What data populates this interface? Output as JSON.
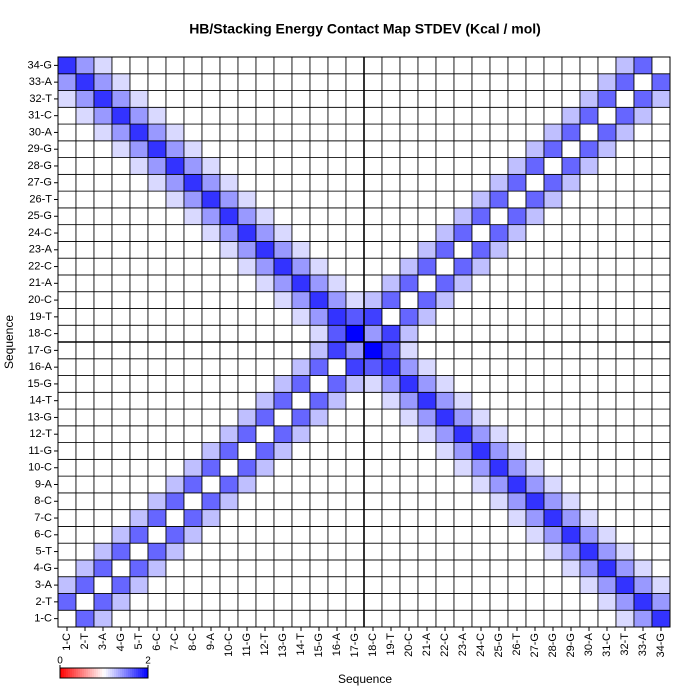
{
  "chart_data": {
    "type": "heatmap",
    "title": "HB/Stacking Energy Contact Map STDEV (Kcal / mol)",
    "x_label": "Sequence",
    "y_label": "Sequence",
    "categories": [
      "1-C",
      "2-T",
      "3-A",
      "4-G",
      "5-T",
      "6-C",
      "7-C",
      "8-C",
      "9-A",
      "10-C",
      "11-G",
      "12-T",
      "13-G",
      "14-T",
      "15-G",
      "16-A",
      "17-G",
      "18-C",
      "19-T",
      "20-C",
      "21-A",
      "22-C",
      "23-A",
      "24-C",
      "25-G",
      "26-T",
      "27-G",
      "28-G",
      "29-G",
      "30-A",
      "31-C",
      "32-T",
      "33-A",
      "34-G"
    ],
    "zlim": [
      0,
      2
    ],
    "zticks": [
      0,
      2
    ],
    "colormap": [
      "#ff0000",
      "#ffffff",
      "#0000ff"
    ],
    "values": [
      [
        1,
        1.6,
        1.25,
        1,
        1,
        1,
        1,
        1,
        1,
        1,
        1,
        1,
        1,
        1,
        1,
        1,
        1,
        1,
        1,
        1,
        1,
        1,
        1,
        1,
        1,
        1,
        1,
        1,
        1,
        1,
        1,
        1.15,
        1.4,
        1.8
      ],
      [
        1.6,
        1,
        1.6,
        1.25,
        1,
        1,
        1,
        1,
        1,
        1,
        1,
        1,
        1,
        1,
        1,
        1,
        1,
        1,
        1,
        1,
        1,
        1,
        1,
        1,
        1,
        1,
        1,
        1,
        1,
        1,
        1.15,
        1.4,
        1.8,
        1.4
      ],
      [
        1.25,
        1.6,
        1,
        1.6,
        1.25,
        1,
        1,
        1,
        1,
        1,
        1,
        1,
        1,
        1,
        1,
        1,
        1,
        1,
        1,
        1,
        1,
        1,
        1,
        1,
        1,
        1,
        1,
        1,
        1,
        1.15,
        1.4,
        1.8,
        1.4,
        1.15
      ],
      [
        1,
        1.25,
        1.6,
        1,
        1.6,
        1.25,
        1,
        1,
        1,
        1,
        1,
        1,
        1,
        1,
        1,
        1,
        1,
        1,
        1,
        1,
        1,
        1,
        1,
        1,
        1,
        1,
        1,
        1,
        1.15,
        1.4,
        1.8,
        1.4,
        1.15,
        1
      ],
      [
        1,
        1,
        1.25,
        1.6,
        1,
        1.6,
        1.25,
        1,
        1,
        1,
        1,
        1,
        1,
        1,
        1,
        1,
        1,
        1,
        1,
        1,
        1,
        1,
        1,
        1,
        1,
        1,
        1,
        1.15,
        1.4,
        1.8,
        1.4,
        1.15,
        1,
        1
      ],
      [
        1,
        1,
        1,
        1.25,
        1.6,
        1,
        1.6,
        1.25,
        1,
        1,
        1,
        1,
        1,
        1,
        1,
        1,
        1,
        1,
        1,
        1,
        1,
        1,
        1,
        1,
        1,
        1,
        1.15,
        1.4,
        1.8,
        1.4,
        1.15,
        1,
        1,
        1
      ],
      [
        1,
        1,
        1,
        1,
        1.25,
        1.6,
        1,
        1.6,
        1.25,
        1,
        1,
        1,
        1,
        1,
        1,
        1,
        1,
        1,
        1,
        1,
        1,
        1,
        1,
        1,
        1,
        1.15,
        1.4,
        1.8,
        1.4,
        1.15,
        1,
        1,
        1,
        1
      ],
      [
        1,
        1,
        1,
        1,
        1,
        1.25,
        1.6,
        1,
        1.6,
        1.25,
        1,
        1,
        1,
        1,
        1,
        1,
        1,
        1,
        1,
        1,
        1,
        1,
        1,
        1,
        1.15,
        1.4,
        1.8,
        1.4,
        1.15,
        1,
        1,
        1,
        1,
        1
      ],
      [
        1,
        1,
        1,
        1,
        1,
        1,
        1.25,
        1.6,
        1,
        1.6,
        1.25,
        1,
        1,
        1,
        1,
        1,
        1,
        1,
        1,
        1,
        1,
        1,
        1,
        1.15,
        1.4,
        1.8,
        1.4,
        1.15,
        1,
        1,
        1,
        1,
        1,
        1
      ],
      [
        1,
        1,
        1,
        1,
        1,
        1,
        1,
        1.25,
        1.6,
        1,
        1.6,
        1.25,
        1,
        1,
        1,
        1,
        1,
        1,
        1,
        1,
        1,
        1,
        1.15,
        1.4,
        1.8,
        1.4,
        1.15,
        1,
        1,
        1,
        1,
        1,
        1,
        1
      ],
      [
        1,
        1,
        1,
        1,
        1,
        1,
        1,
        1,
        1.25,
        1.6,
        1,
        1.6,
        1.25,
        1,
        1,
        1,
        1,
        1,
        1,
        1,
        1,
        1.15,
        1.4,
        1.8,
        1.4,
        1.15,
        1,
        1,
        1,
        1,
        1,
        1,
        1,
        1
      ],
      [
        1,
        1,
        1,
        1,
        1,
        1,
        1,
        1,
        1,
        1.25,
        1.6,
        1,
        1.6,
        1.25,
        1,
        1,
        1,
        1,
        1,
        1,
        1.15,
        1.4,
        1.8,
        1.4,
        1.15,
        1,
        1,
        1,
        1,
        1,
        1,
        1,
        1,
        1
      ],
      [
        1,
        1,
        1,
        1,
        1,
        1,
        1,
        1,
        1,
        1,
        1.25,
        1.6,
        1,
        1.6,
        1.25,
        1,
        1,
        1,
        1,
        1.15,
        1.4,
        1.8,
        1.4,
        1.15,
        1,
        1,
        1,
        1,
        1,
        1,
        1,
        1,
        1,
        1
      ],
      [
        1,
        1,
        1,
        1,
        1,
        1,
        1,
        1,
        1,
        1,
        1,
        1.25,
        1.6,
        1,
        1.6,
        1.25,
        1,
        1,
        1.15,
        1.4,
        1.8,
        1.4,
        1.15,
        1,
        1,
        1,
        1,
        1,
        1,
        1,
        1,
        1,
        1,
        1
      ],
      [
        1,
        1,
        1,
        1,
        1,
        1,
        1,
        1,
        1,
        1,
        1,
        1,
        1.25,
        1.6,
        1,
        1.6,
        1.25,
        1.15,
        1.4,
        1.8,
        1.4,
        1.15,
        1,
        1,
        1,
        1,
        1,
        1,
        1,
        1,
        1,
        1,
        1,
        1
      ],
      [
        1,
        1,
        1,
        1,
        1,
        1,
        1,
        1,
        1,
        1,
        1,
        1,
        1,
        1.25,
        1.6,
        1,
        1.75,
        1.65,
        1.8,
        1.4,
        1.15,
        1,
        1,
        1,
        1,
        1,
        1,
        1,
        1,
        1,
        1,
        1,
        1,
        1
      ],
      [
        1,
        1,
        1,
        1,
        1,
        1,
        1,
        1,
        1,
        1,
        1,
        1,
        1,
        1,
        1.25,
        1.75,
        1.4,
        2,
        1.65,
        1.15,
        1,
        1,
        1,
        1,
        1,
        1,
        1,
        1,
        1,
        1,
        1,
        1,
        1,
        1
      ],
      [
        1,
        1,
        1,
        1,
        1,
        1,
        1,
        1,
        1,
        1,
        1,
        1,
        1,
        1,
        1.15,
        1.65,
        2,
        1.4,
        1.75,
        1.25,
        1,
        1,
        1,
        1,
        1,
        1,
        1,
        1,
        1,
        1,
        1,
        1,
        1,
        1
      ],
      [
        1,
        1,
        1,
        1,
        1,
        1,
        1,
        1,
        1,
        1,
        1,
        1,
        1,
        1.15,
        1.4,
        1.8,
        1.65,
        1.75,
        1,
        1.6,
        1.25,
        1,
        1,
        1,
        1,
        1,
        1,
        1,
        1,
        1,
        1,
        1,
        1,
        1
      ],
      [
        1,
        1,
        1,
        1,
        1,
        1,
        1,
        1,
        1,
        1,
        1,
        1,
        1.15,
        1.4,
        1.8,
        1.4,
        1.15,
        1.25,
        1.6,
        1,
        1.6,
        1.25,
        1,
        1,
        1,
        1,
        1,
        1,
        1,
        1,
        1,
        1,
        1,
        1
      ],
      [
        1,
        1,
        1,
        1,
        1,
        1,
        1,
        1,
        1,
        1,
        1,
        1.15,
        1.4,
        1.8,
        1.4,
        1.15,
        1,
        1,
        1.25,
        1.6,
        1,
        1.6,
        1.25,
        1,
        1,
        1,
        1,
        1,
        1,
        1,
        1,
        1,
        1,
        1
      ],
      [
        1,
        1,
        1,
        1,
        1,
        1,
        1,
        1,
        1,
        1,
        1.15,
        1.4,
        1.8,
        1.4,
        1.15,
        1,
        1,
        1,
        1,
        1.25,
        1.6,
        1,
        1.6,
        1.25,
        1,
        1,
        1,
        1,
        1,
        1,
        1,
        1,
        1,
        1
      ],
      [
        1,
        1,
        1,
        1,
        1,
        1,
        1,
        1,
        1,
        1.15,
        1.4,
        1.8,
        1.4,
        1.15,
        1,
        1,
        1,
        1,
        1,
        1,
        1.25,
        1.6,
        1,
        1.6,
        1.25,
        1,
        1,
        1,
        1,
        1,
        1,
        1,
        1,
        1
      ],
      [
        1,
        1,
        1,
        1,
        1,
        1,
        1,
        1,
        1.15,
        1.4,
        1.8,
        1.4,
        1.15,
        1,
        1,
        1,
        1,
        1,
        1,
        1,
        1,
        1.25,
        1.6,
        1,
        1.6,
        1.25,
        1,
        1,
        1,
        1,
        1,
        1,
        1,
        1
      ],
      [
        1,
        1,
        1,
        1,
        1,
        1,
        1,
        1.15,
        1.4,
        1.8,
        1.4,
        1.15,
        1,
        1,
        1,
        1,
        1,
        1,
        1,
        1,
        1,
        1,
        1.25,
        1.6,
        1,
        1.6,
        1.25,
        1,
        1,
        1,
        1,
        1,
        1,
        1
      ],
      [
        1,
        1,
        1,
        1,
        1,
        1,
        1.15,
        1.4,
        1.8,
        1.4,
        1.15,
        1,
        1,
        1,
        1,
        1,
        1,
        1,
        1,
        1,
        1,
        1,
        1,
        1.25,
        1.6,
        1,
        1.6,
        1.25,
        1,
        1,
        1,
        1,
        1,
        1
      ],
      [
        1,
        1,
        1,
        1,
        1,
        1.15,
        1.4,
        1.8,
        1.4,
        1.15,
        1,
        1,
        1,
        1,
        1,
        1,
        1,
        1,
        1,
        1,
        1,
        1,
        1,
        1,
        1.25,
        1.6,
        1,
        1.6,
        1.25,
        1,
        1,
        1,
        1,
        1
      ],
      [
        1,
        1,
        1,
        1,
        1.15,
        1.4,
        1.8,
        1.4,
        1.15,
        1,
        1,
        1,
        1,
        1,
        1,
        1,
        1,
        1,
        1,
        1,
        1,
        1,
        1,
        1,
        1,
        1.25,
        1.6,
        1,
        1.6,
        1.25,
        1,
        1,
        1,
        1
      ],
      [
        1,
        1,
        1,
        1.15,
        1.4,
        1.8,
        1.4,
        1.15,
        1,
        1,
        1,
        1,
        1,
        1,
        1,
        1,
        1,
        1,
        1,
        1,
        1,
        1,
        1,
        1,
        1,
        1,
        1.25,
        1.6,
        1,
        1.6,
        1.25,
        1,
        1,
        1
      ],
      [
        1,
        1,
        1.15,
        1.4,
        1.8,
        1.4,
        1.15,
        1,
        1,
        1,
        1,
        1,
        1,
        1,
        1,
        1,
        1,
        1,
        1,
        1,
        1,
        1,
        1,
        1,
        1,
        1,
        1,
        1.25,
        1.6,
        1,
        1.6,
        1.25,
        1,
        1
      ],
      [
        1,
        1.15,
        1.4,
        1.8,
        1.4,
        1.15,
        1,
        1,
        1,
        1,
        1,
        1,
        1,
        1,
        1,
        1,
        1,
        1,
        1,
        1,
        1,
        1,
        1,
        1,
        1,
        1,
        1,
        1,
        1.25,
        1.6,
        1,
        1.6,
        1.25,
        1
      ],
      [
        1.15,
        1.4,
        1.8,
        1.4,
        1.15,
        1,
        1,
        1,
        1,
        1,
        1,
        1,
        1,
        1,
        1,
        1,
        1,
        1,
        1,
        1,
        1,
        1,
        1,
        1,
        1,
        1,
        1,
        1,
        1,
        1.25,
        1.6,
        1,
        1.6,
        1.25
      ],
      [
        1.4,
        1.8,
        1.4,
        1.15,
        1,
        1,
        1,
        1,
        1,
        1,
        1,
        1,
        1,
        1,
        1,
        1,
        1,
        1,
        1,
        1,
        1,
        1,
        1,
        1,
        1,
        1,
        1,
        1,
        1,
        1,
        1.25,
        1.6,
        1,
        1.6
      ],
      [
        1.8,
        1.4,
        1.15,
        1,
        1,
        1,
        1,
        1,
        1,
        1,
        1,
        1,
        1,
        1,
        1,
        1,
        1,
        1,
        1,
        1,
        1,
        1,
        1,
        1,
        1,
        1,
        1,
        1,
        1,
        1,
        1,
        1.25,
        1.6,
        1
      ]
    ]
  }
}
